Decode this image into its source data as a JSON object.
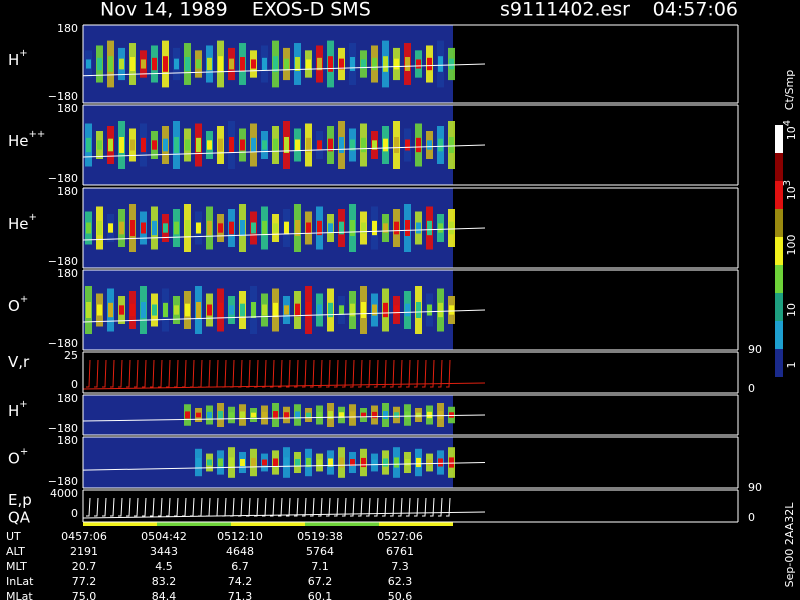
{
  "header": {
    "title": "Nov 14, 1989    EXOS-D SMS",
    "file": "s9111402.esr",
    "time": "04:57:06"
  },
  "panels": [
    {
      "label": "H",
      "sup": "+",
      "top": "180",
      "bottom": "−180"
    },
    {
      "label": "He",
      "sup": "++",
      "top": "180",
      "bottom": "−180"
    },
    {
      "label": "He",
      "sup": "+",
      "top": "180",
      "bottom": "−180"
    },
    {
      "label": "O",
      "sup": "+",
      "top": "180",
      "bottom": "−180"
    },
    {
      "label": "V,r",
      "top": "25",
      "bottom": "0",
      "right_top": "90",
      "right_bottom": "0"
    },
    {
      "label": "H",
      "sup": "+",
      "top": "180",
      "bottom": "−180"
    },
    {
      "label": "O",
      "sup": "+",
      "top": "180",
      "bottom": "−180"
    },
    {
      "label": "E,p",
      "label2": "QA",
      "top": "4000",
      "bottom": "0",
      "right_top": "90",
      "right_bottom": "0"
    }
  ],
  "colorbar": {
    "unit": "Ct/Smp",
    "labels": [
      {
        "base": "10",
        "sup": "4"
      },
      {
        "base": "10",
        "sup": "3"
      },
      {
        "base": "100"
      },
      {
        "base": "10"
      },
      {
        "base": "1"
      }
    ]
  },
  "footer": {
    "rows": [
      [
        "UT",
        "0457:06",
        "0504:42",
        "0512:10",
        "0519:38",
        "0527:06"
      ],
      [
        "ALT",
        "2191",
        "3443",
        "4648",
        "5764",
        "6761"
      ],
      [
        "MLT",
        "20.7",
        "4.5",
        "6.7",
        "7.1",
        "7.3"
      ],
      [
        "InLat",
        "77.2",
        "83.2",
        "74.2",
        "67.2",
        "62.3"
      ],
      [
        "MLat",
        "75.0",
        "84.4",
        "71.3",
        "60.1",
        "50.6"
      ]
    ]
  },
  "stamp": "Sep-00 2AA32L"
}
